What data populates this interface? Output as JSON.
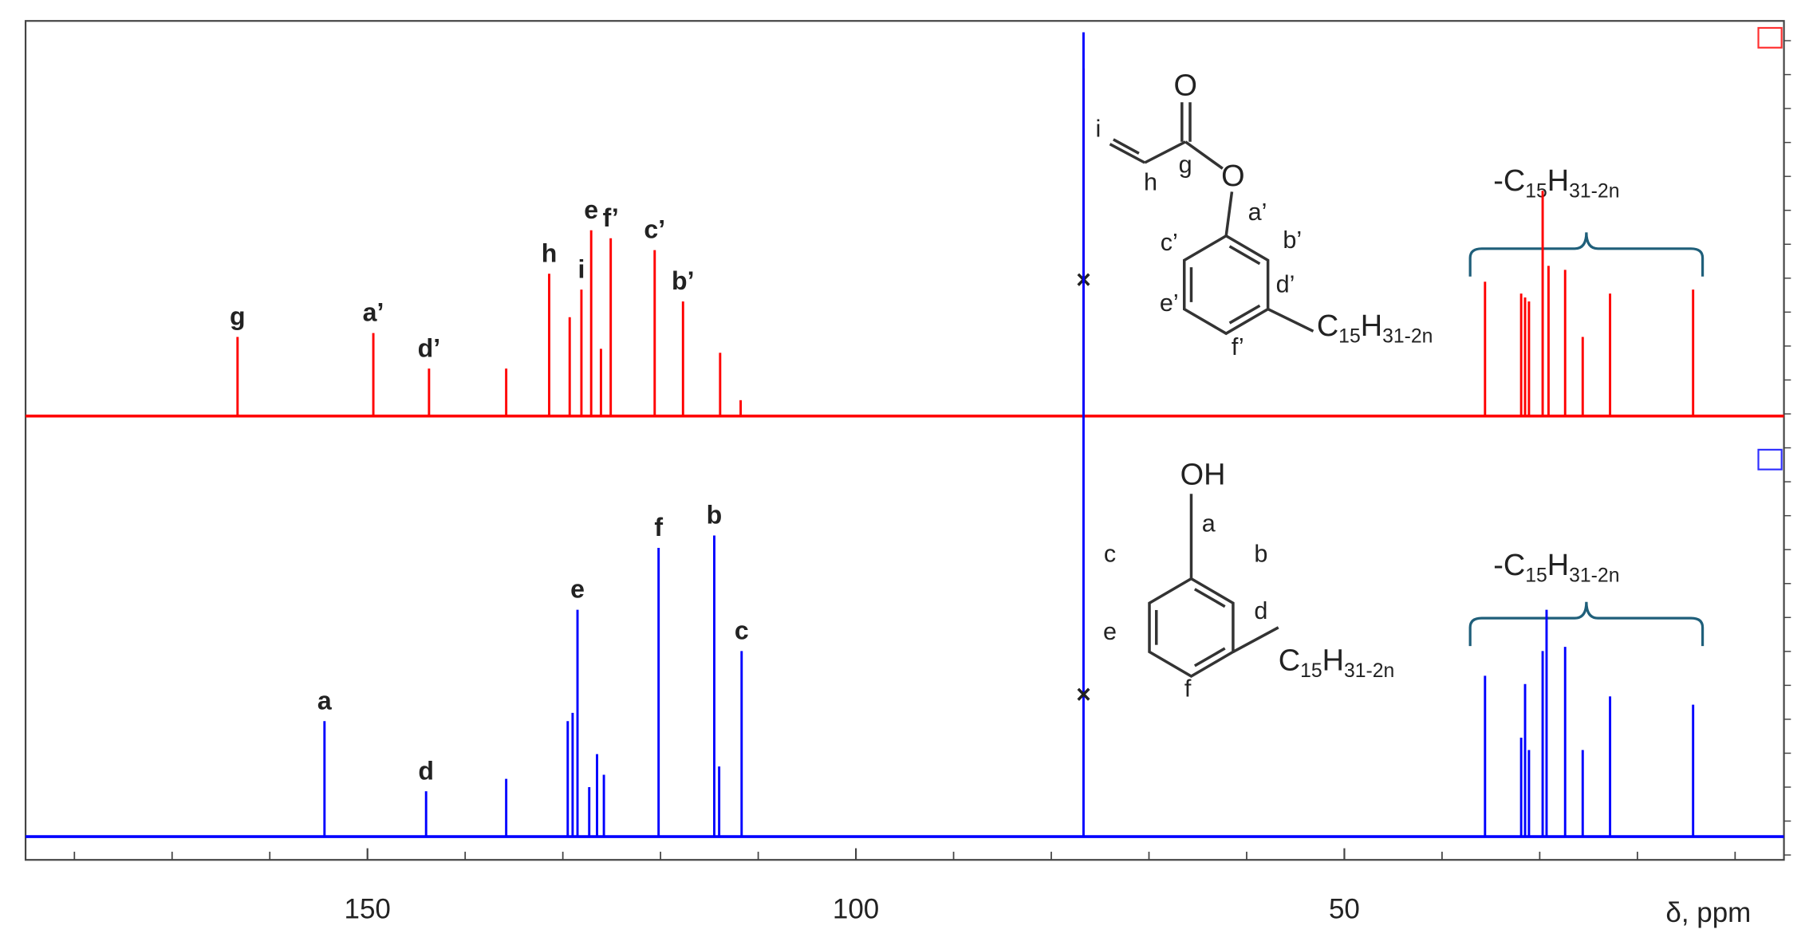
{
  "chart_data": {
    "type": "nmr",
    "x_label": "δ, ppm",
    "xlim": [
      185,
      5
    ],
    "xticks": [
      150,
      100,
      50
    ],
    "xminorticks": [
      180,
      170,
      160,
      140,
      130,
      120,
      110,
      90,
      80,
      70,
      60,
      40,
      30,
      20,
      10
    ],
    "spectra": [
      {
        "color": "#ff0000",
        "ylim": [
          0,
          1
        ],
        "peaks": [
          {
            "ppm": 163.3,
            "height": 0.2,
            "label": "g"
          },
          {
            "ppm": 149.4,
            "height": 0.21,
            "label": "a’"
          },
          {
            "ppm": 143.7,
            "height": 0.12,
            "label": "d’"
          },
          {
            "ppm": 135.8,
            "height": 0.12
          },
          {
            "ppm": 131.4,
            "height": 0.36,
            "label": "h"
          },
          {
            "ppm": 129.3,
            "height": 0.25
          },
          {
            "ppm": 128.1,
            "height": 0.32,
            "label": "i"
          },
          {
            "ppm": 127.1,
            "height": 0.47,
            "label": "e"
          },
          {
            "ppm": 126.1,
            "height": 0.17
          },
          {
            "ppm": 125.1,
            "height": 0.45,
            "label": "f’"
          },
          {
            "ppm": 120.6,
            "height": 0.42,
            "label": "c’"
          },
          {
            "ppm": 117.7,
            "height": 0.29,
            "label": "b’"
          },
          {
            "ppm": 113.9,
            "height": 0.16
          },
          {
            "ppm": 111.8,
            "height": 0.04
          },
          {
            "ppm": 76.7,
            "height": 0.88,
            "label": "×"
          },
          {
            "ppm": 35.6,
            "height": 0.34
          },
          {
            "ppm": 31.9,
            "height": 0.31
          },
          {
            "ppm": 31.5,
            "height": 0.3
          },
          {
            "ppm": 31.1,
            "height": 0.29
          },
          {
            "ppm": 29.7,
            "height": 0.57
          },
          {
            "ppm": 29.1,
            "height": 0.38
          },
          {
            "ppm": 27.4,
            "height": 0.37
          },
          {
            "ppm": 25.6,
            "height": 0.2
          },
          {
            "ppm": 22.8,
            "height": 0.31
          },
          {
            "ppm": 14.3,
            "height": 0.32
          }
        ]
      },
      {
        "color": "#0000ff",
        "ylim": [
          0,
          1
        ],
        "peaks": [
          {
            "ppm": 154.4,
            "height": 0.28,
            "label": "a"
          },
          {
            "ppm": 144.0,
            "height": 0.11,
            "label": "d"
          },
          {
            "ppm": 135.8,
            "height": 0.14
          },
          {
            "ppm": 129.5,
            "height": 0.28
          },
          {
            "ppm": 129.0,
            "height": 0.3
          },
          {
            "ppm": 128.5,
            "height": 0.55,
            "label": "e"
          },
          {
            "ppm": 127.3,
            "height": 0.12
          },
          {
            "ppm": 126.5,
            "height": 0.2
          },
          {
            "ppm": 125.8,
            "height": 0.15
          },
          {
            "ppm": 120.2,
            "height": 0.7,
            "label": "f"
          },
          {
            "ppm": 114.5,
            "height": 0.73,
            "label": "b"
          },
          {
            "ppm": 114.0,
            "height": 0.17
          },
          {
            "ppm": 111.7,
            "height": 0.45,
            "label": "c"
          },
          {
            "ppm": 76.7,
            "height": 1.95,
            "label": "×"
          },
          {
            "ppm": 35.6,
            "height": 0.39
          },
          {
            "ppm": 31.9,
            "height": 0.24
          },
          {
            "ppm": 31.5,
            "height": 0.37
          },
          {
            "ppm": 31.1,
            "height": 0.21
          },
          {
            "ppm": 29.7,
            "height": 0.45
          },
          {
            "ppm": 29.3,
            "height": 0.55
          },
          {
            "ppm": 27.4,
            "height": 0.46
          },
          {
            "ppm": 25.6,
            "height": 0.21
          },
          {
            "ppm": 22.8,
            "height": 0.34
          },
          {
            "ppm": 14.3,
            "height": 0.32
          }
        ]
      }
    ]
  },
  "structures": [
    {
      "labels": [
        "O",
        "i",
        "g",
        "h",
        "O",
        "a’",
        "b’",
        "c’",
        "d’",
        "e’",
        "f’"
      ],
      "substituent": [
        "C",
        "15",
        "H",
        "31-2n"
      ],
      "group_label": [
        "-C",
        "15",
        "H",
        "31-2n"
      ]
    },
    {
      "labels": [
        "OH",
        "a",
        "b",
        "c",
        "d",
        "e",
        "f"
      ],
      "substituent": [
        "C",
        "15",
        "H",
        "31-2n"
      ],
      "group_label": [
        "-C",
        "15",
        "H",
        "31-2n"
      ]
    }
  ]
}
